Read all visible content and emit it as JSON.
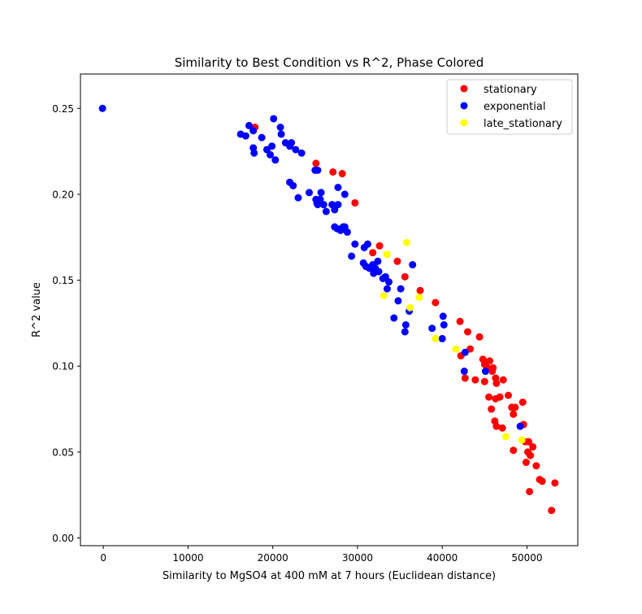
{
  "chart_data": {
    "type": "scatter",
    "title": "Similarity to Best Condition vs R^2, Phase Colored",
    "xlabel": "Similarity to MgSO4 at 400 mM at 7 hours (Euclidean distance)",
    "ylabel": "R^2 value",
    "xlim": [
      -2700,
      56000
    ],
    "ylim": [
      -0.0045,
      0.27
    ],
    "xticks": [
      0,
      10000,
      20000,
      30000,
      40000,
      50000
    ],
    "xtick_labels": [
      "0",
      "10000",
      "20000",
      "30000",
      "40000",
      "50000"
    ],
    "yticks": [
      0.0,
      0.05,
      0.1,
      0.15,
      0.2,
      0.25
    ],
    "ytick_labels": [
      "0.00",
      "0.05",
      "0.10",
      "0.15",
      "0.20",
      "0.25"
    ],
    "grid": false,
    "legend_position": "top-right",
    "series": [
      {
        "name": "stationary",
        "color": "#ff0000",
        "points": [
          [
            17900,
            0.239
          ],
          [
            25100,
            0.218
          ],
          [
            27100,
            0.213
          ],
          [
            28200,
            0.212
          ],
          [
            29700,
            0.195
          ],
          [
            31800,
            0.166
          ],
          [
            32600,
            0.17
          ],
          [
            34700,
            0.161
          ],
          [
            35600,
            0.152
          ],
          [
            37400,
            0.144
          ],
          [
            39200,
            0.137
          ],
          [
            42100,
            0.126
          ],
          [
            43000,
            0.12
          ],
          [
            43300,
            0.11
          ],
          [
            44400,
            0.117
          ],
          [
            42200,
            0.106
          ],
          [
            44800,
            0.104
          ],
          [
            45600,
            0.103
          ],
          [
            45000,
            0.101
          ],
          [
            45300,
            0.099
          ],
          [
            46000,
            0.099
          ],
          [
            45900,
            0.097
          ],
          [
            46300,
            0.093
          ],
          [
            46400,
            0.09
          ],
          [
            43900,
            0.092
          ],
          [
            45000,
            0.091
          ],
          [
            42700,
            0.093
          ],
          [
            47200,
            0.092
          ],
          [
            47800,
            0.083
          ],
          [
            46300,
            0.081
          ],
          [
            46800,
            0.082
          ],
          [
            45500,
            0.082
          ],
          [
            48200,
            0.076
          ],
          [
            48600,
            0.076
          ],
          [
            45800,
            0.075
          ],
          [
            48400,
            0.072
          ],
          [
            49500,
            0.079
          ],
          [
            46200,
            0.068
          ],
          [
            46400,
            0.065
          ],
          [
            47100,
            0.064
          ],
          [
            49600,
            0.066
          ],
          [
            50200,
            0.056
          ],
          [
            49800,
            0.056
          ],
          [
            50700,
            0.053
          ],
          [
            48400,
            0.051
          ],
          [
            50100,
            0.05
          ],
          [
            50400,
            0.048
          ],
          [
            49900,
            0.044
          ],
          [
            51100,
            0.042
          ],
          [
            51500,
            0.034
          ],
          [
            51800,
            0.033
          ],
          [
            53300,
            0.032
          ],
          [
            50300,
            0.027
          ],
          [
            52900,
            0.016
          ]
        ]
      },
      {
        "name": "exponential",
        "color": "#0000ff",
        "points": [
          [
            -100,
            0.25
          ],
          [
            20100,
            0.244
          ],
          [
            16200,
            0.235
          ],
          [
            17200,
            0.24
          ],
          [
            17700,
            0.237
          ],
          [
            16800,
            0.234
          ],
          [
            20900,
            0.239
          ],
          [
            21000,
            0.235
          ],
          [
            21500,
            0.23
          ],
          [
            22000,
            0.228
          ],
          [
            22200,
            0.23
          ],
          [
            23400,
            0.224
          ],
          [
            18700,
            0.233
          ],
          [
            17700,
            0.227
          ],
          [
            17800,
            0.224
          ],
          [
            19300,
            0.226
          ],
          [
            19900,
            0.228
          ],
          [
            20300,
            0.22
          ],
          [
            19700,
            0.223
          ],
          [
            22700,
            0.226
          ],
          [
            25000,
            0.214
          ],
          [
            25300,
            0.214
          ],
          [
            22000,
            0.207
          ],
          [
            22400,
            0.205
          ],
          [
            24300,
            0.201
          ],
          [
            25700,
            0.201
          ],
          [
            26000,
            0.194
          ],
          [
            25100,
            0.197
          ],
          [
            25200,
            0.195
          ],
          [
            25600,
            0.197
          ],
          [
            25300,
            0.194
          ],
          [
            23000,
            0.198
          ],
          [
            27700,
            0.204
          ],
          [
            28500,
            0.2
          ],
          [
            27000,
            0.194
          ],
          [
            27300,
            0.191
          ],
          [
            27700,
            0.194
          ],
          [
            26300,
            0.19
          ],
          [
            27300,
            0.181
          ],
          [
            27600,
            0.18
          ],
          [
            28000,
            0.179
          ],
          [
            28300,
            0.181
          ],
          [
            28500,
            0.181
          ],
          [
            28800,
            0.178
          ],
          [
            29700,
            0.171
          ],
          [
            30800,
            0.169
          ],
          [
            31200,
            0.171
          ],
          [
            30700,
            0.16
          ],
          [
            31000,
            0.158
          ],
          [
            31400,
            0.157
          ],
          [
            31800,
            0.159
          ],
          [
            32100,
            0.157
          ],
          [
            32400,
            0.161
          ],
          [
            31900,
            0.154
          ],
          [
            32500,
            0.155
          ],
          [
            29300,
            0.164
          ],
          [
            33000,
            0.151
          ],
          [
            33300,
            0.152
          ],
          [
            33500,
            0.145
          ],
          [
            33700,
            0.149
          ],
          [
            35100,
            0.145
          ],
          [
            36500,
            0.159
          ],
          [
            34800,
            0.138
          ],
          [
            36100,
            0.132
          ],
          [
            34300,
            0.128
          ],
          [
            35700,
            0.124
          ],
          [
            35600,
            0.12
          ],
          [
            38800,
            0.122
          ],
          [
            40100,
            0.129
          ],
          [
            40200,
            0.124
          ],
          [
            40000,
            0.116
          ],
          [
            42600,
            0.097
          ],
          [
            42700,
            0.108
          ],
          [
            45100,
            0.097
          ],
          [
            49200,
            0.065
          ]
        ]
      },
      {
        "name": "late_stationary",
        "color": "#ffff00",
        "points": [
          [
            35800,
            0.172
          ],
          [
            33500,
            0.165
          ],
          [
            33100,
            0.141
          ],
          [
            36200,
            0.134
          ],
          [
            37300,
            0.14
          ],
          [
            39200,
            0.116
          ],
          [
            41600,
            0.11
          ],
          [
            47500,
            0.059
          ],
          [
            49400,
            0.057
          ]
        ]
      }
    ]
  }
}
